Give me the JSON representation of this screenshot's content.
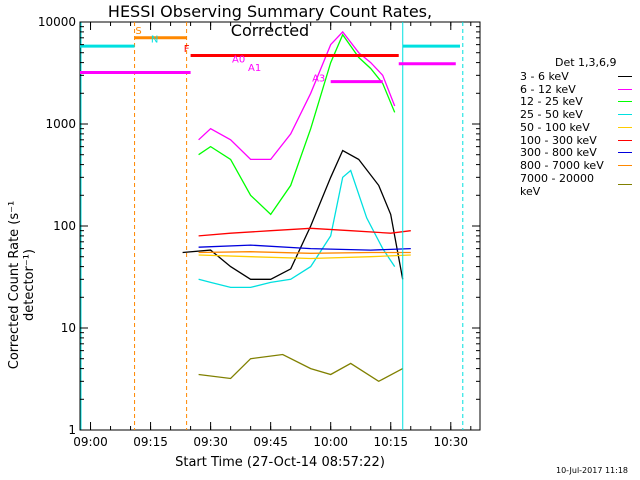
{
  "chart_data": {
    "type": "line",
    "title": "HESSI Observing Summary Count Rates, Corrected",
    "xlabel": "Start Time (27-Oct-14 08:57:22)",
    "ylabel": "Corrected Count Rate (s⁻¹ detector⁻¹)",
    "x_ticks": [
      "09:00",
      "09:15",
      "09:30",
      "09:45",
      "10:00",
      "10:15",
      "10:30"
    ],
    "y_ticks": [
      "1",
      "10",
      "100",
      "1000",
      "10000"
    ],
    "ylim": [
      1,
      10000
    ],
    "y_scale": "log",
    "legend_title": "Det 1,3,6,9",
    "series": [
      {
        "name": "3 - 6 keV",
        "color": "#000000",
        "data": [
          [
            "09:23",
            55
          ],
          [
            "09:30",
            58
          ],
          [
            "09:35",
            40
          ],
          [
            "09:40",
            30
          ],
          [
            "09:45",
            30
          ],
          [
            "09:50",
            38
          ],
          [
            "09:55",
            100
          ],
          [
            "10:00",
            300
          ],
          [
            "10:03",
            550
          ],
          [
            "10:07",
            450
          ],
          [
            "10:12",
            250
          ],
          [
            "10:15",
            130
          ],
          [
            "10:18",
            30
          ]
        ]
      },
      {
        "name": "6 - 12 keV",
        "color": "#ff00ff",
        "data": [
          [
            "09:27",
            700
          ],
          [
            "09:30",
            900
          ],
          [
            "09:35",
            700
          ],
          [
            "09:40",
            450
          ],
          [
            "09:45",
            450
          ],
          [
            "09:50",
            800
          ],
          [
            "09:55",
            2000
          ],
          [
            "10:00",
            6000
          ],
          [
            "10:03",
            8000
          ],
          [
            "10:07",
            5000
          ],
          [
            "10:10",
            4000
          ],
          [
            "10:13",
            3000
          ],
          [
            "10:16",
            1500
          ]
        ]
      },
      {
        "name": "12 - 25 keV",
        "color": "#00ff00",
        "data": [
          [
            "09:27",
            500
          ],
          [
            "09:30",
            600
          ],
          [
            "09:35",
            450
          ],
          [
            "09:40",
            200
          ],
          [
            "09:45",
            130
          ],
          [
            "09:50",
            250
          ],
          [
            "09:55",
            900
          ],
          [
            "10:00",
            4000
          ],
          [
            "10:03",
            7500
          ],
          [
            "10:07",
            4500
          ],
          [
            "10:10",
            3500
          ],
          [
            "10:13",
            2500
          ],
          [
            "10:16",
            1300
          ]
        ]
      },
      {
        "name": "25 - 50 keV",
        "color": "#00e0e0",
        "data": [
          [
            "09:27",
            30
          ],
          [
            "09:30",
            28
          ],
          [
            "09:35",
            25
          ],
          [
            "09:40",
            25
          ],
          [
            "09:45",
            28
          ],
          [
            "09:50",
            30
          ],
          [
            "09:55",
            40
          ],
          [
            "10:00",
            80
          ],
          [
            "10:03",
            300
          ],
          [
            "10:05",
            350
          ],
          [
            "10:09",
            120
          ],
          [
            "10:13",
            60
          ],
          [
            "10:16",
            40
          ]
        ]
      },
      {
        "name": "50 - 100 keV",
        "color": "#ffcc00",
        "data": [
          [
            "09:27",
            52
          ],
          [
            "09:40",
            50
          ],
          [
            "09:55",
            48
          ],
          [
            "10:10",
            50
          ],
          [
            "10:20",
            52
          ]
        ]
      },
      {
        "name": "100 - 300 keV",
        "color": "#ff0000",
        "data": [
          [
            "09:27",
            80
          ],
          [
            "09:35",
            85
          ],
          [
            "09:45",
            90
          ],
          [
            "09:55",
            95
          ],
          [
            "10:05",
            90
          ],
          [
            "10:15",
            85
          ],
          [
            "10:20",
            90
          ]
        ]
      },
      {
        "name": "300 - 800 keV",
        "color": "#0000dd",
        "data": [
          [
            "09:27",
            62
          ],
          [
            "09:40",
            65
          ],
          [
            "09:55",
            60
          ],
          [
            "10:10",
            58
          ],
          [
            "10:20",
            60
          ]
        ]
      },
      {
        "name": "800 - 7000 keV",
        "color": "#ff8800",
        "data": [
          [
            "09:27",
            55
          ],
          [
            "09:40",
            56
          ],
          [
            "09:55",
            54
          ],
          [
            "10:10",
            55
          ],
          [
            "10:20",
            55
          ]
        ]
      },
      {
        "name": "7000 - 20000 keV",
        "color": "#808000",
        "data": [
          [
            "09:27",
            3.5
          ],
          [
            "09:35",
            3.2
          ],
          [
            "09:40",
            5
          ],
          [
            "09:48",
            5.5
          ],
          [
            "09:55",
            4
          ],
          [
            "10:00",
            3.5
          ],
          [
            "10:05",
            4.5
          ],
          [
            "10:12",
            3
          ],
          [
            "10:18",
            4
          ]
        ]
      }
    ],
    "flag_labels": [
      "S",
      "N",
      "F",
      "A0",
      "A1",
      "A3"
    ]
  },
  "footer_date": "10-Jul-2017 11:18",
  "colors": {
    "saa": "#ff8800",
    "night": "#00e0e0",
    "flare": "#ff0000",
    "atten": "#ff00ff"
  }
}
